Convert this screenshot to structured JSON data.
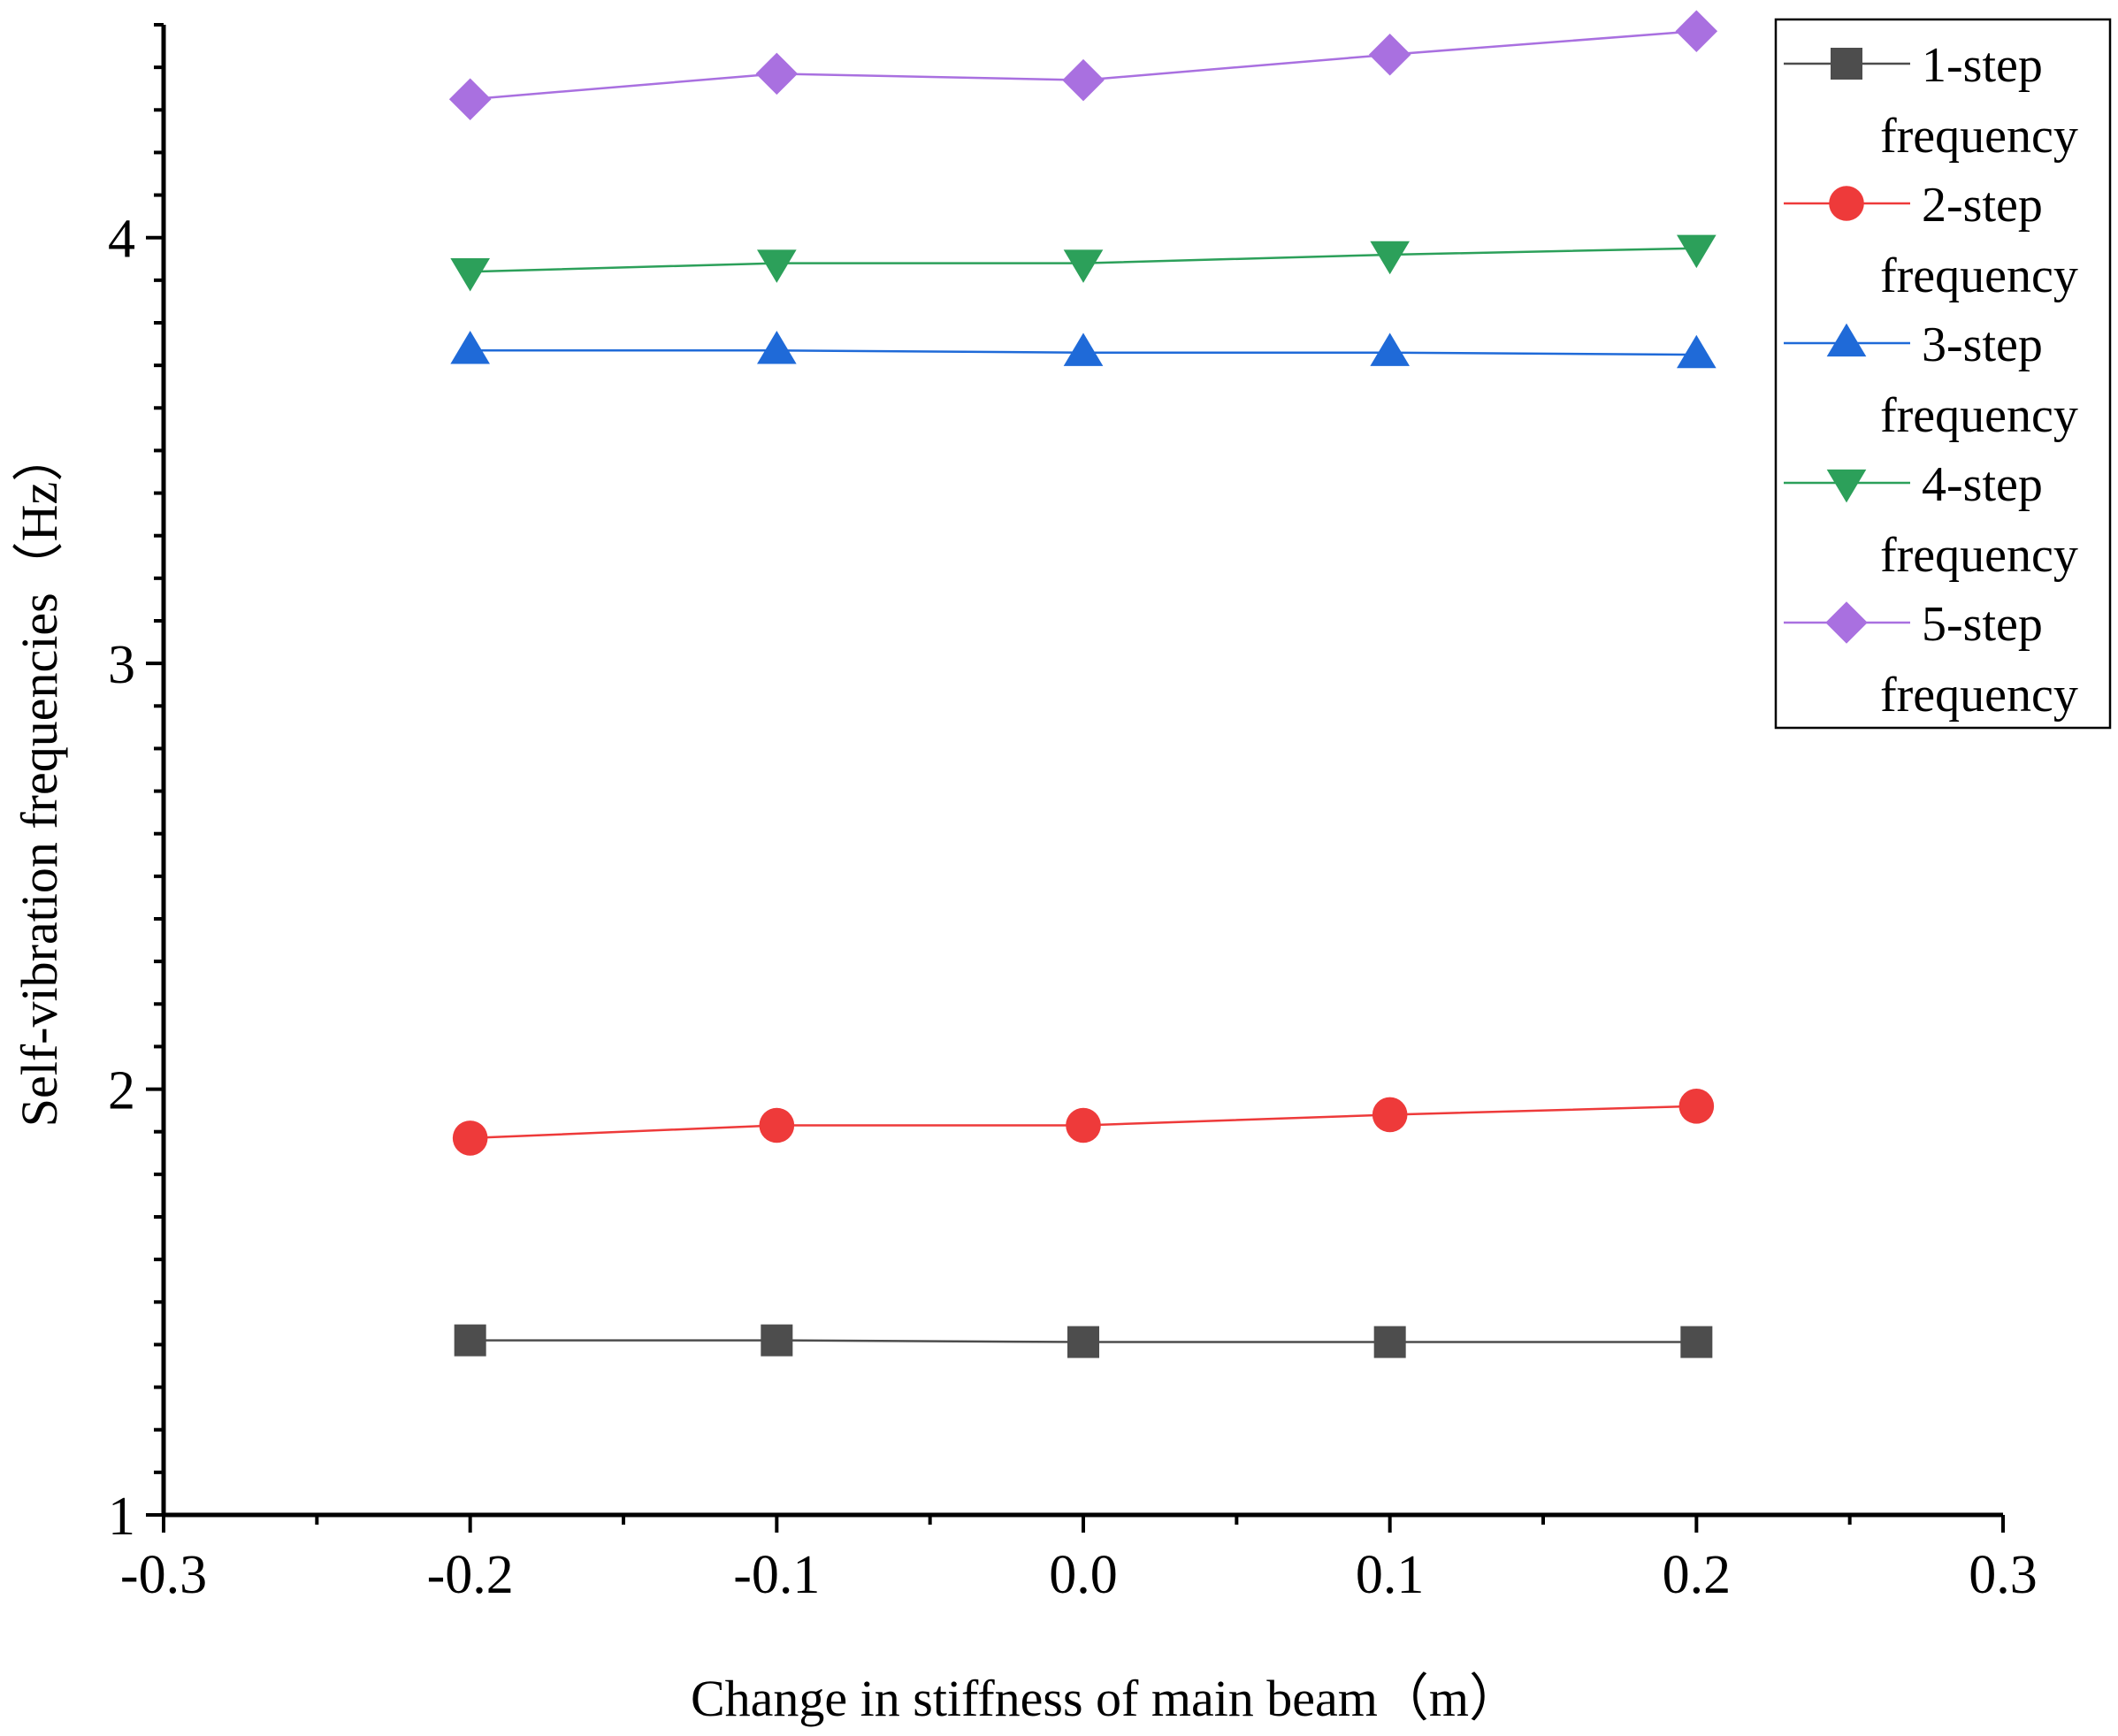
{
  "chart_data": {
    "type": "line",
    "title": "",
    "xlabel": "Change in stiffness of main beam（m）",
    "ylabel": "Self-vibration frequencies（Hz）",
    "xlim": [
      -0.3,
      0.3
    ],
    "ylim": [
      1,
      4.5
    ],
    "x_ticks": [
      -0.3,
      -0.2,
      -0.1,
      0.0,
      0.1,
      0.2,
      0.3
    ],
    "x_tick_labels": [
      "-0.3",
      "-0.2",
      "-0.1",
      "0.0",
      "0.1",
      "0.2",
      "0.3"
    ],
    "y_ticks": [
      1,
      2,
      3,
      4
    ],
    "y_tick_labels": [
      "1",
      "2",
      "3",
      "4"
    ],
    "x": [
      -0.2,
      -0.1,
      0.0,
      0.1,
      0.2
    ],
    "legend_position": "top-right",
    "series": [
      {
        "name": "1-step frequency",
        "line1": "1-step",
        "line2": "frequency",
        "marker": "square",
        "color": "#4d4d4d",
        "values": [
          1.41,
          1.41,
          1.406,
          1.406,
          1.406
        ]
      },
      {
        "name": "2-step frequency",
        "line1": "2-step",
        "line2": "frequency",
        "marker": "circle",
        "color": "#ee3a3a",
        "values": [
          1.885,
          1.915,
          1.915,
          1.94,
          1.96
        ]
      },
      {
        "name": "3-step frequency",
        "line1": "3-step",
        "line2": "frequency",
        "marker": "triangle",
        "color": "#1f6ad8",
        "values": [
          3.735,
          3.735,
          3.73,
          3.73,
          3.725
        ]
      },
      {
        "name": "4-step frequency",
        "line1": "4-step",
        "line2": "frequency",
        "marker": "triangle-down",
        "color": "#2ca05a",
        "values": [
          3.92,
          3.94,
          3.94,
          3.96,
          3.975
        ]
      },
      {
        "name": "5-step frequency",
        "line1": "5-step",
        "line2": "frequency",
        "marker": "diamond",
        "color": "#a970e0",
        "values": [
          4.325,
          4.385,
          4.37,
          4.43,
          4.485
        ]
      }
    ]
  }
}
